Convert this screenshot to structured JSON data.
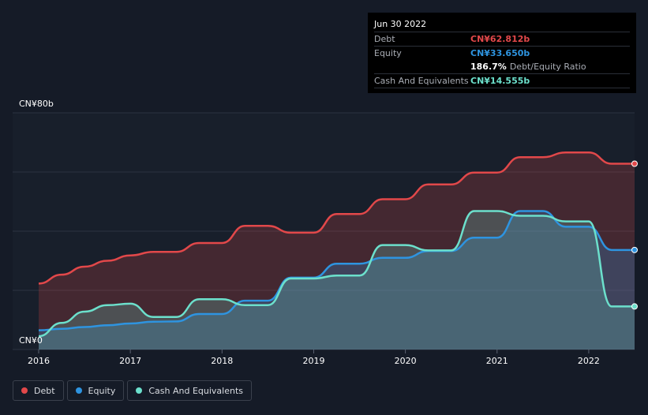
{
  "tooltip": {
    "date": "Jun 30 2022",
    "debt_label": "Debt",
    "debt_value": "CN¥62.812b",
    "equity_label": "Equity",
    "equity_value": "CN¥33.650b",
    "ratio_value": "186.7%",
    "ratio_label": "Debt/Equity Ratio",
    "cash_label": "Cash And Equivalents",
    "cash_value": "CN¥14.555b"
  },
  "legend": {
    "debt": "Debt",
    "equity": "Equity",
    "cash": "Cash And Equivalents"
  },
  "colors": {
    "debt": "#e2484a",
    "equity": "#2e94e0",
    "cash": "#6ce0cc",
    "background": "#151b27",
    "plot_bg": "#181f2b"
  },
  "chart_data": {
    "type": "area",
    "title": "",
    "xlabel": "",
    "ylabel": "",
    "ylim": [
      0,
      80
    ],
    "y_unit": "CN¥ billions",
    "y_tick_labels": [
      "CN¥0",
      "CN¥80b"
    ],
    "x_ticks": [
      2016,
      2017,
      2018,
      2019,
      2020,
      2021,
      2022
    ],
    "x_tick_labels": [
      "2016",
      "2017",
      "2018",
      "2019",
      "2020",
      "2021",
      "2022"
    ],
    "xlim": [
      2016.0,
      2022.5
    ],
    "series": [
      {
        "name": "Debt",
        "key": "debt",
        "points": [
          [
            2016.0,
            22.3
          ],
          [
            2016.25,
            25.3
          ],
          [
            2016.5,
            28.0
          ],
          [
            2016.75,
            30.0
          ],
          [
            2017.0,
            31.8
          ],
          [
            2017.25,
            33.0
          ],
          [
            2017.5,
            33.0
          ],
          [
            2017.75,
            36.0
          ],
          [
            2018.0,
            36.0
          ],
          [
            2018.25,
            41.8
          ],
          [
            2018.5,
            41.8
          ],
          [
            2018.75,
            39.5
          ],
          [
            2019.0,
            39.5
          ],
          [
            2019.25,
            45.8
          ],
          [
            2019.5,
            45.8
          ],
          [
            2019.75,
            50.8
          ],
          [
            2020.0,
            50.8
          ],
          [
            2020.25,
            55.8
          ],
          [
            2020.5,
            55.8
          ],
          [
            2020.75,
            59.8
          ],
          [
            2021.0,
            59.8
          ],
          [
            2021.25,
            65.0
          ],
          [
            2021.5,
            65.0
          ],
          [
            2021.75,
            66.6
          ],
          [
            2022.0,
            66.6
          ],
          [
            2022.25,
            62.8
          ],
          [
            2022.5,
            62.8
          ]
        ]
      },
      {
        "name": "Equity",
        "key": "equity",
        "points": [
          [
            2016.0,
            6.5
          ],
          [
            2016.25,
            7.0
          ],
          [
            2016.5,
            7.6
          ],
          [
            2016.75,
            8.2
          ],
          [
            2017.0,
            8.8
          ],
          [
            2017.25,
            9.4
          ],
          [
            2017.5,
            9.5
          ],
          [
            2017.75,
            12.0
          ],
          [
            2018.0,
            12.0
          ],
          [
            2018.25,
            16.5
          ],
          [
            2018.5,
            16.5
          ],
          [
            2018.75,
            24.3
          ],
          [
            2019.0,
            24.3
          ],
          [
            2019.25,
            29.0
          ],
          [
            2019.5,
            29.0
          ],
          [
            2019.75,
            31.0
          ],
          [
            2020.0,
            31.0
          ],
          [
            2020.25,
            33.3
          ],
          [
            2020.5,
            33.3
          ],
          [
            2020.75,
            37.8
          ],
          [
            2021.0,
            37.8
          ],
          [
            2021.25,
            46.8
          ],
          [
            2021.5,
            46.8
          ],
          [
            2021.75,
            41.5
          ],
          [
            2022.0,
            41.5
          ],
          [
            2022.25,
            33.65
          ],
          [
            2022.5,
            33.65
          ]
        ]
      },
      {
        "name": "Cash And Equivalents",
        "key": "cash",
        "points": [
          [
            2016.0,
            4.5
          ],
          [
            2016.25,
            9.0
          ],
          [
            2016.5,
            12.8
          ],
          [
            2016.75,
            15.0
          ],
          [
            2017.0,
            15.5
          ],
          [
            2017.25,
            11.0
          ],
          [
            2017.5,
            11.0
          ],
          [
            2017.75,
            17.0
          ],
          [
            2018.0,
            17.0
          ],
          [
            2018.25,
            15.0
          ],
          [
            2018.5,
            15.0
          ],
          [
            2018.75,
            24.0
          ],
          [
            2019.0,
            24.0
          ],
          [
            2019.25,
            25.0
          ],
          [
            2019.5,
            25.0
          ],
          [
            2019.75,
            35.3
          ],
          [
            2020.0,
            35.3
          ],
          [
            2020.25,
            33.5
          ],
          [
            2020.5,
            33.5
          ],
          [
            2020.75,
            46.8
          ],
          [
            2021.0,
            46.8
          ],
          [
            2021.25,
            45.2
          ],
          [
            2021.5,
            45.2
          ],
          [
            2021.75,
            43.3
          ],
          [
            2022.0,
            43.3
          ],
          [
            2022.25,
            14.555
          ],
          [
            2022.5,
            14.555
          ]
        ]
      }
    ]
  }
}
